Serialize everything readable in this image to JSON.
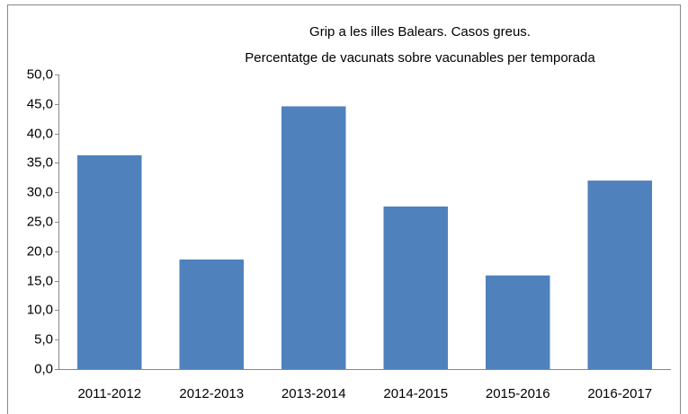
{
  "chart_data": {
    "type": "bar",
    "title": "Grip a les illes Balears. Casos greus.",
    "subtitle": "Percentatge de vacunats sobre vacunables per temporada",
    "categories": [
      "2011-2012",
      "2012-2013",
      "2013-2014",
      "2014-2015",
      "2015-2016",
      "2016-2017"
    ],
    "values": [
      36.3,
      18.6,
      44.6,
      27.6,
      15.9,
      32.0
    ],
    "color": "#4f81bd",
    "ylim": [
      0,
      50
    ],
    "yticks": [
      {
        "value": 0,
        "label": "0,0"
      },
      {
        "value": 5,
        "label": "5,0"
      },
      {
        "value": 10,
        "label": "10,0"
      },
      {
        "value": 15,
        "label": "15,0"
      },
      {
        "value": 20,
        "label": "20,0"
      },
      {
        "value": 25,
        "label": "25,0"
      },
      {
        "value": 30,
        "label": "30,0"
      },
      {
        "value": 35,
        "label": "35,0"
      },
      {
        "value": 40,
        "label": "40,0"
      },
      {
        "value": 45,
        "label": "45,0"
      },
      {
        "value": 50,
        "label": "50,0"
      }
    ],
    "grid": false
  }
}
